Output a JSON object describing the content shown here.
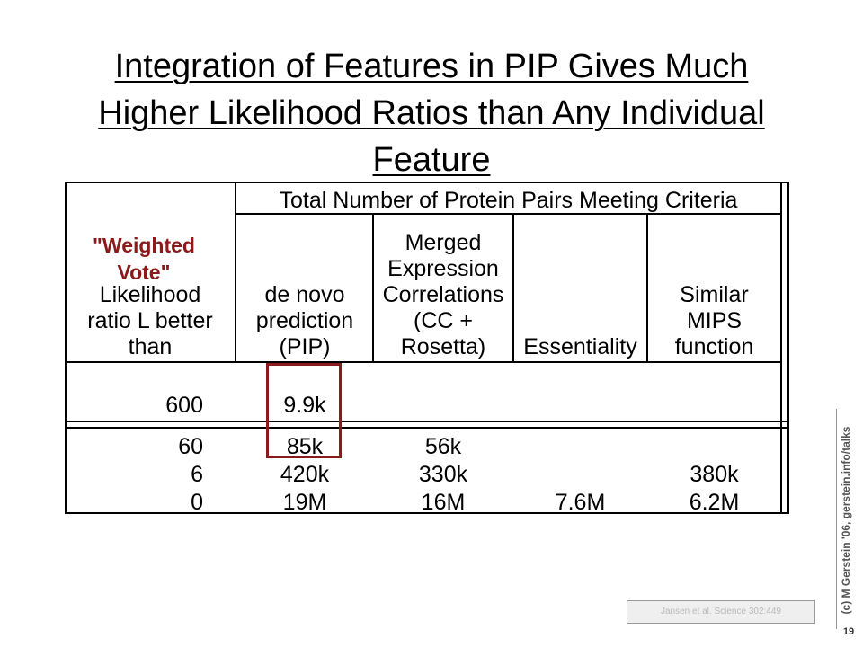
{
  "title": {
    "line1": "Integration of Features in PIP Gives Much",
    "line2": "Higher Likelihood Ratios than Any Individual",
    "line3": "Feature"
  },
  "table": {
    "group_header": "Total Number of Protein Pairs Meeting Criteria",
    "weighted_vote": [
      "\"Weighted",
      "Vote\""
    ],
    "row_header": [
      "Likelihood",
      "ratio L better",
      "than"
    ],
    "columns": [
      {
        "lines": [
          "de novo",
          "prediction",
          "(PIP)"
        ]
      },
      {
        "lines": [
          "Merged",
          "Expression",
          "Correlations",
          "(CC +",
          "Rosetta)"
        ]
      },
      {
        "lines": [
          "Essentiality"
        ]
      },
      {
        "lines": [
          "Similar",
          "MIPS",
          "function"
        ]
      }
    ],
    "top_row": {
      "threshold": "600",
      "values": [
        "9.9k",
        "",
        "",
        ""
      ]
    },
    "rows": [
      {
        "threshold": "60",
        "values": [
          "85k",
          "56k",
          "",
          ""
        ]
      },
      {
        "threshold": "6",
        "values": [
          "420k",
          "330k",
          "",
          "380k"
        ]
      },
      {
        "threshold": "0",
        "values": [
          "19M",
          "16M",
          "7.6M",
          "6.2M"
        ]
      }
    ]
  },
  "citation": "Jansen et al. Science 302:449",
  "side_credit": "(c) M Gerstein '06, gerstein.info/talks",
  "page_number": "19",
  "colors": {
    "accent": "#8b1a1a"
  }
}
